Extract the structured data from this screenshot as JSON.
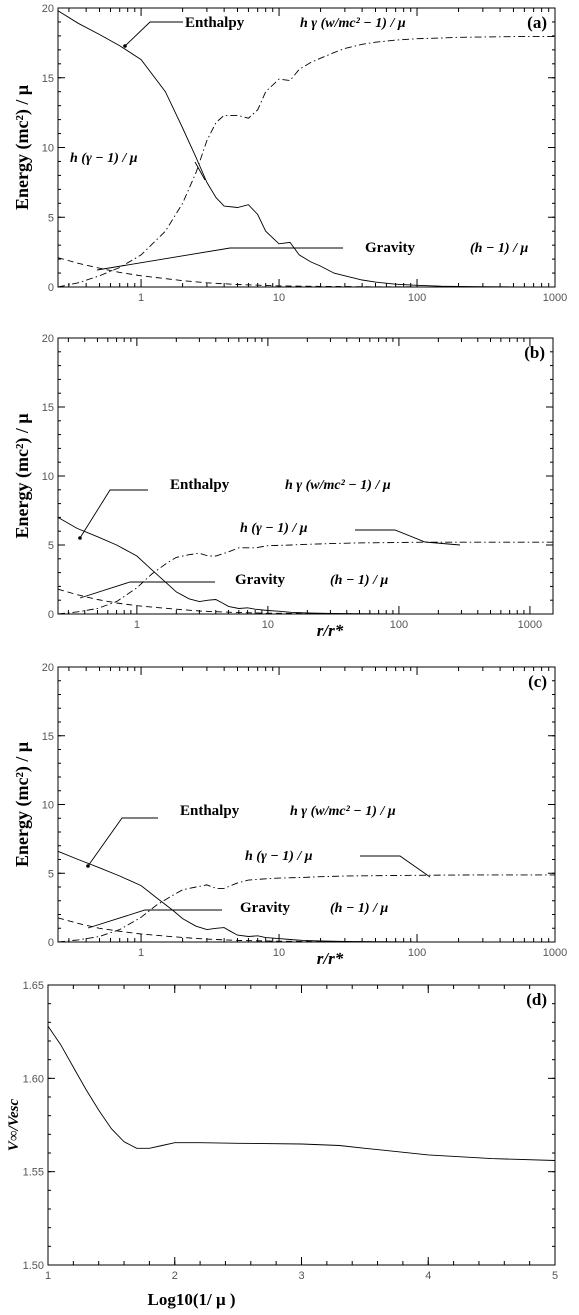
{
  "chart_data": [
    {
      "id": "a",
      "type": "line",
      "panel_label": "(a)",
      "xscale": "log",
      "xlim": [
        0.25,
        1000
      ],
      "ylim": [
        0,
        20
      ],
      "xticks": [
        "1",
        "10",
        "100",
        "1000"
      ],
      "yticks": [
        "0",
        "5",
        "10",
        "15",
        "20"
      ],
      "xlabel": "",
      "ylabel": "Energy (mc²) / μ",
      "annotations": {
        "enthalpy_name": "Enthalpy",
        "enthalpy_formula": "h γ (w/mc² − 1) / μ",
        "kinetic_formula": "h (γ − 1) / μ",
        "gravity_name": "Gravity",
        "gravity_formula": "(h − 1) / μ"
      },
      "series": [
        {
          "style": "solid",
          "x": [
            0.25,
            0.35,
            0.5,
            0.7,
            1,
            1.5,
            2,
            2.5,
            3,
            3.5,
            4,
            5,
            6,
            7,
            8,
            10,
            12,
            14,
            17,
            20,
            25,
            30,
            40,
            50,
            70,
            100,
            150,
            200,
            300,
            500,
            1000
          ],
          "y": [
            19.8,
            18.9,
            18.1,
            17.3,
            16.3,
            14.0,
            11.4,
            9.3,
            7.5,
            6.4,
            5.8,
            5.7,
            5.9,
            5.2,
            4.0,
            3.1,
            3.2,
            2.3,
            1.8,
            1.5,
            1.0,
            0.8,
            0.5,
            0.35,
            0.2,
            0.12,
            0.06,
            0.04,
            0.02,
            0.01,
            0.0
          ]
        },
        {
          "style": "dashdot",
          "x": [
            0.25,
            0.35,
            0.5,
            0.7,
            1,
            1.5,
            2,
            2.5,
            3,
            3.5,
            4,
            5,
            6,
            7,
            8,
            10,
            12,
            14,
            17,
            20,
            25,
            30,
            40,
            50,
            70,
            100,
            150,
            200,
            300,
            500,
            1000
          ],
          "y": [
            0.0,
            0.3,
            0.8,
            1.4,
            2.3,
            4.0,
            6.0,
            8.2,
            10.5,
            11.8,
            12.3,
            12.3,
            12.1,
            12.7,
            14.0,
            14.9,
            14.8,
            15.6,
            16.1,
            16.4,
            16.8,
            17.1,
            17.4,
            17.55,
            17.7,
            17.8,
            17.85,
            17.9,
            17.92,
            17.95,
            17.95
          ]
        },
        {
          "style": "dashed",
          "x": [
            0.25,
            0.35,
            0.5,
            0.7,
            1,
            1.5,
            2,
            3,
            5,
            10,
            20,
            50,
            100,
            1000
          ],
          "y": [
            2.1,
            1.7,
            1.35,
            1.05,
            0.8,
            0.6,
            0.45,
            0.3,
            0.18,
            0.08,
            0.04,
            0.015,
            0.006,
            0.0
          ]
        }
      ]
    },
    {
      "id": "b",
      "type": "line",
      "panel_label": "(b)",
      "xscale": "log",
      "xlim": [
        0.25,
        1500
      ],
      "ylim": [
        0,
        20
      ],
      "xticks": [
        "1",
        "10",
        "100",
        "1000"
      ],
      "yticks": [
        "0",
        "5",
        "10",
        "15",
        "20"
      ],
      "xlabel": "r/r*",
      "ylabel": "Energy (mc²) / μ",
      "annotations": {
        "enthalpy_name": "Enthalpy",
        "enthalpy_formula": "h γ (w/mc² − 1) / μ",
        "kinetic_formula": "h (γ − 1) / μ",
        "gravity_name": "Gravity",
        "gravity_formula": "(h − 1) / μ"
      },
      "series": [
        {
          "style": "solid",
          "x": [
            0.25,
            0.35,
            0.5,
            0.7,
            1,
            1.3,
            1.7,
            2,
            2.5,
            3,
            3.5,
            4,
            4.5,
            5,
            6,
            7,
            8,
            10,
            12,
            15,
            20,
            30,
            50,
            100
          ],
          "y": [
            7.0,
            6.2,
            5.6,
            5.0,
            4.2,
            3.2,
            2.2,
            1.6,
            1.1,
            0.9,
            1.0,
            1.05,
            0.8,
            0.55,
            0.4,
            0.45,
            0.35,
            0.25,
            0.2,
            0.12,
            0.08,
            0.04,
            0.02,
            0.0
          ]
        },
        {
          "style": "dashdot",
          "x": [
            0.25,
            0.35,
            0.5,
            0.7,
            1,
            1.3,
            1.7,
            2,
            2.5,
            3,
            3.5,
            4,
            5,
            6,
            8,
            10,
            15,
            20,
            30,
            50,
            100,
            150,
            300,
            1000,
            1500
          ],
          "y": [
            0.0,
            0.15,
            0.4,
            0.9,
            1.9,
            2.9,
            3.7,
            4.1,
            4.3,
            4.4,
            4.2,
            4.2,
            4.5,
            4.8,
            4.8,
            4.95,
            5.0,
            5.05,
            5.1,
            5.15,
            5.18,
            5.2,
            5.2,
            5.2,
            5.2
          ]
        },
        {
          "style": "dashed",
          "x": [
            0.25,
            0.35,
            0.5,
            0.7,
            1,
            1.5,
            2,
            3,
            5,
            10,
            20,
            50,
            100
          ],
          "y": [
            1.8,
            1.4,
            1.05,
            0.8,
            0.6,
            0.45,
            0.35,
            0.22,
            0.13,
            0.06,
            0.03,
            0.01,
            0.0
          ]
        }
      ]
    },
    {
      "id": "c",
      "type": "line",
      "panel_label": "(c)",
      "xscale": "log",
      "xlim": [
        0.25,
        1000
      ],
      "ylim": [
        0,
        20
      ],
      "xticks": [
        "1",
        "10",
        "100",
        "1000"
      ],
      "yticks": [
        "0",
        "5",
        "10",
        "15",
        "20"
      ],
      "xlabel": "r/r*",
      "ylabel": "Energy (mc²) / μ",
      "annotations": {
        "enthalpy_name": "Enthalpy",
        "enthalpy_formula": "h γ (w/mc² − 1) / μ",
        "kinetic_formula": "h (γ − 1) / μ",
        "gravity_name": "Gravity",
        "gravity_formula": "(h − 1) / μ"
      },
      "series": [
        {
          "style": "solid",
          "x": [
            0.25,
            0.35,
            0.5,
            0.7,
            1,
            1.3,
            1.7,
            2,
            2.5,
            3,
            3.5,
            4,
            4.5,
            5,
            6,
            7,
            8,
            10,
            12,
            15,
            20,
            30,
            50,
            100
          ],
          "y": [
            6.6,
            6.0,
            5.4,
            4.8,
            4.1,
            3.2,
            2.3,
            1.7,
            1.15,
            0.9,
            1.0,
            1.05,
            0.75,
            0.5,
            0.4,
            0.45,
            0.32,
            0.25,
            0.18,
            0.12,
            0.08,
            0.04,
            0.02,
            0.0
          ]
        },
        {
          "style": "dashdot",
          "x": [
            0.25,
            0.35,
            0.5,
            0.7,
            1,
            1.3,
            1.7,
            2,
            2.5,
            3,
            3.5,
            4,
            5,
            6,
            8,
            10,
            15,
            20,
            30,
            50,
            100,
            200,
            500,
            1000
          ],
          "y": [
            0.0,
            0.15,
            0.4,
            0.9,
            1.8,
            2.7,
            3.4,
            3.8,
            4.0,
            4.15,
            3.9,
            3.9,
            4.3,
            4.5,
            4.6,
            4.65,
            4.7,
            4.75,
            4.8,
            4.82,
            4.85,
            4.87,
            4.88,
            4.88
          ]
        },
        {
          "style": "dashed",
          "x": [
            0.25,
            0.35,
            0.5,
            0.7,
            1,
            1.5,
            2,
            3,
            5,
            10,
            20,
            50,
            100
          ],
          "y": [
            1.75,
            1.35,
            1.0,
            0.78,
            0.58,
            0.43,
            0.33,
            0.21,
            0.12,
            0.06,
            0.03,
            0.01,
            0.0
          ]
        }
      ]
    },
    {
      "id": "d",
      "type": "line",
      "panel_label": "(d)",
      "xscale": "linear",
      "xlim": [
        1,
        5
      ],
      "ylim": [
        1.5,
        1.65
      ],
      "xticks": [
        "1",
        "2",
        "3",
        "4",
        "5"
      ],
      "yticks": [
        "1.50",
        "1.55",
        "1.60",
        "1.65"
      ],
      "xlabel": "Log10(1/ μ )",
      "ylabel": "V∞/Vesc",
      "series": [
        {
          "style": "solid",
          "x": [
            1.0,
            1.1,
            1.2,
            1.3,
            1.4,
            1.5,
            1.6,
            1.7,
            1.8,
            1.9,
            2.0,
            2.2,
            2.5,
            3.0,
            3.3,
            3.5,
            4.0,
            4.5,
            5.0
          ],
          "y": [
            1.628,
            1.618,
            1.606,
            1.594,
            1.583,
            1.573,
            1.566,
            1.5625,
            1.5625,
            1.564,
            1.5655,
            1.5655,
            1.5652,
            1.5648,
            1.564,
            1.5625,
            1.559,
            1.557,
            1.556
          ]
        }
      ]
    }
  ]
}
